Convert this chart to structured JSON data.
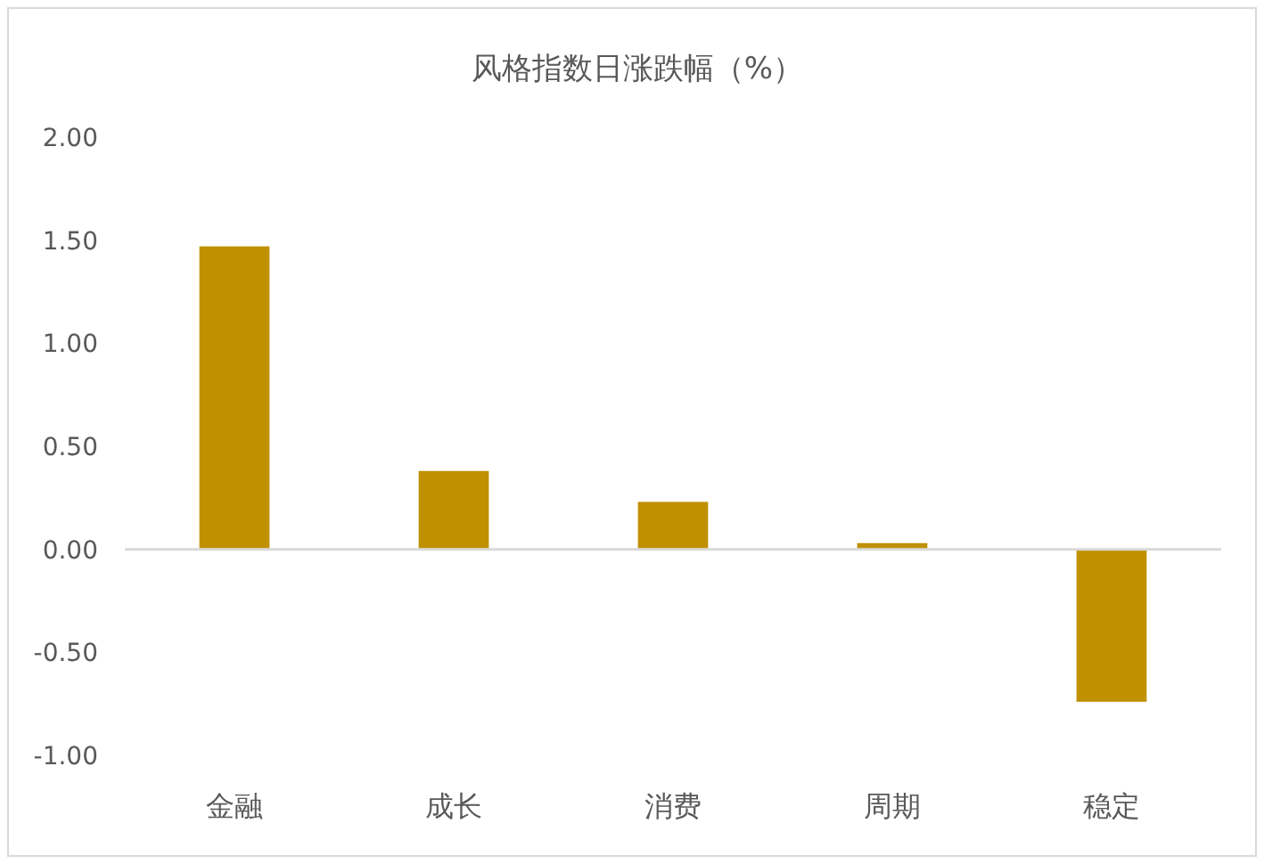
{
  "chart_data": {
    "type": "bar",
    "title": "风格指数日涨跌幅（%）",
    "categories": [
      "金融",
      "成长",
      "消费",
      "周期",
      "稳定"
    ],
    "values": [
      1.47,
      0.38,
      0.23,
      0.03,
      -0.74
    ],
    "color": "#bf9000",
    "ylim": [
      -1,
      2
    ],
    "yticks": [
      {
        "value": -1,
        "label": "-1.00"
      },
      {
        "value": -0.5,
        "label": "-0.50"
      },
      {
        "value": 0,
        "label": "0.00"
      },
      {
        "value": 0.5,
        "label": "0.50"
      },
      {
        "value": 1,
        "label": "1.00"
      },
      {
        "value": 1.5,
        "label": "1.50"
      },
      {
        "value": 2,
        "label": "2.00"
      }
    ]
  }
}
